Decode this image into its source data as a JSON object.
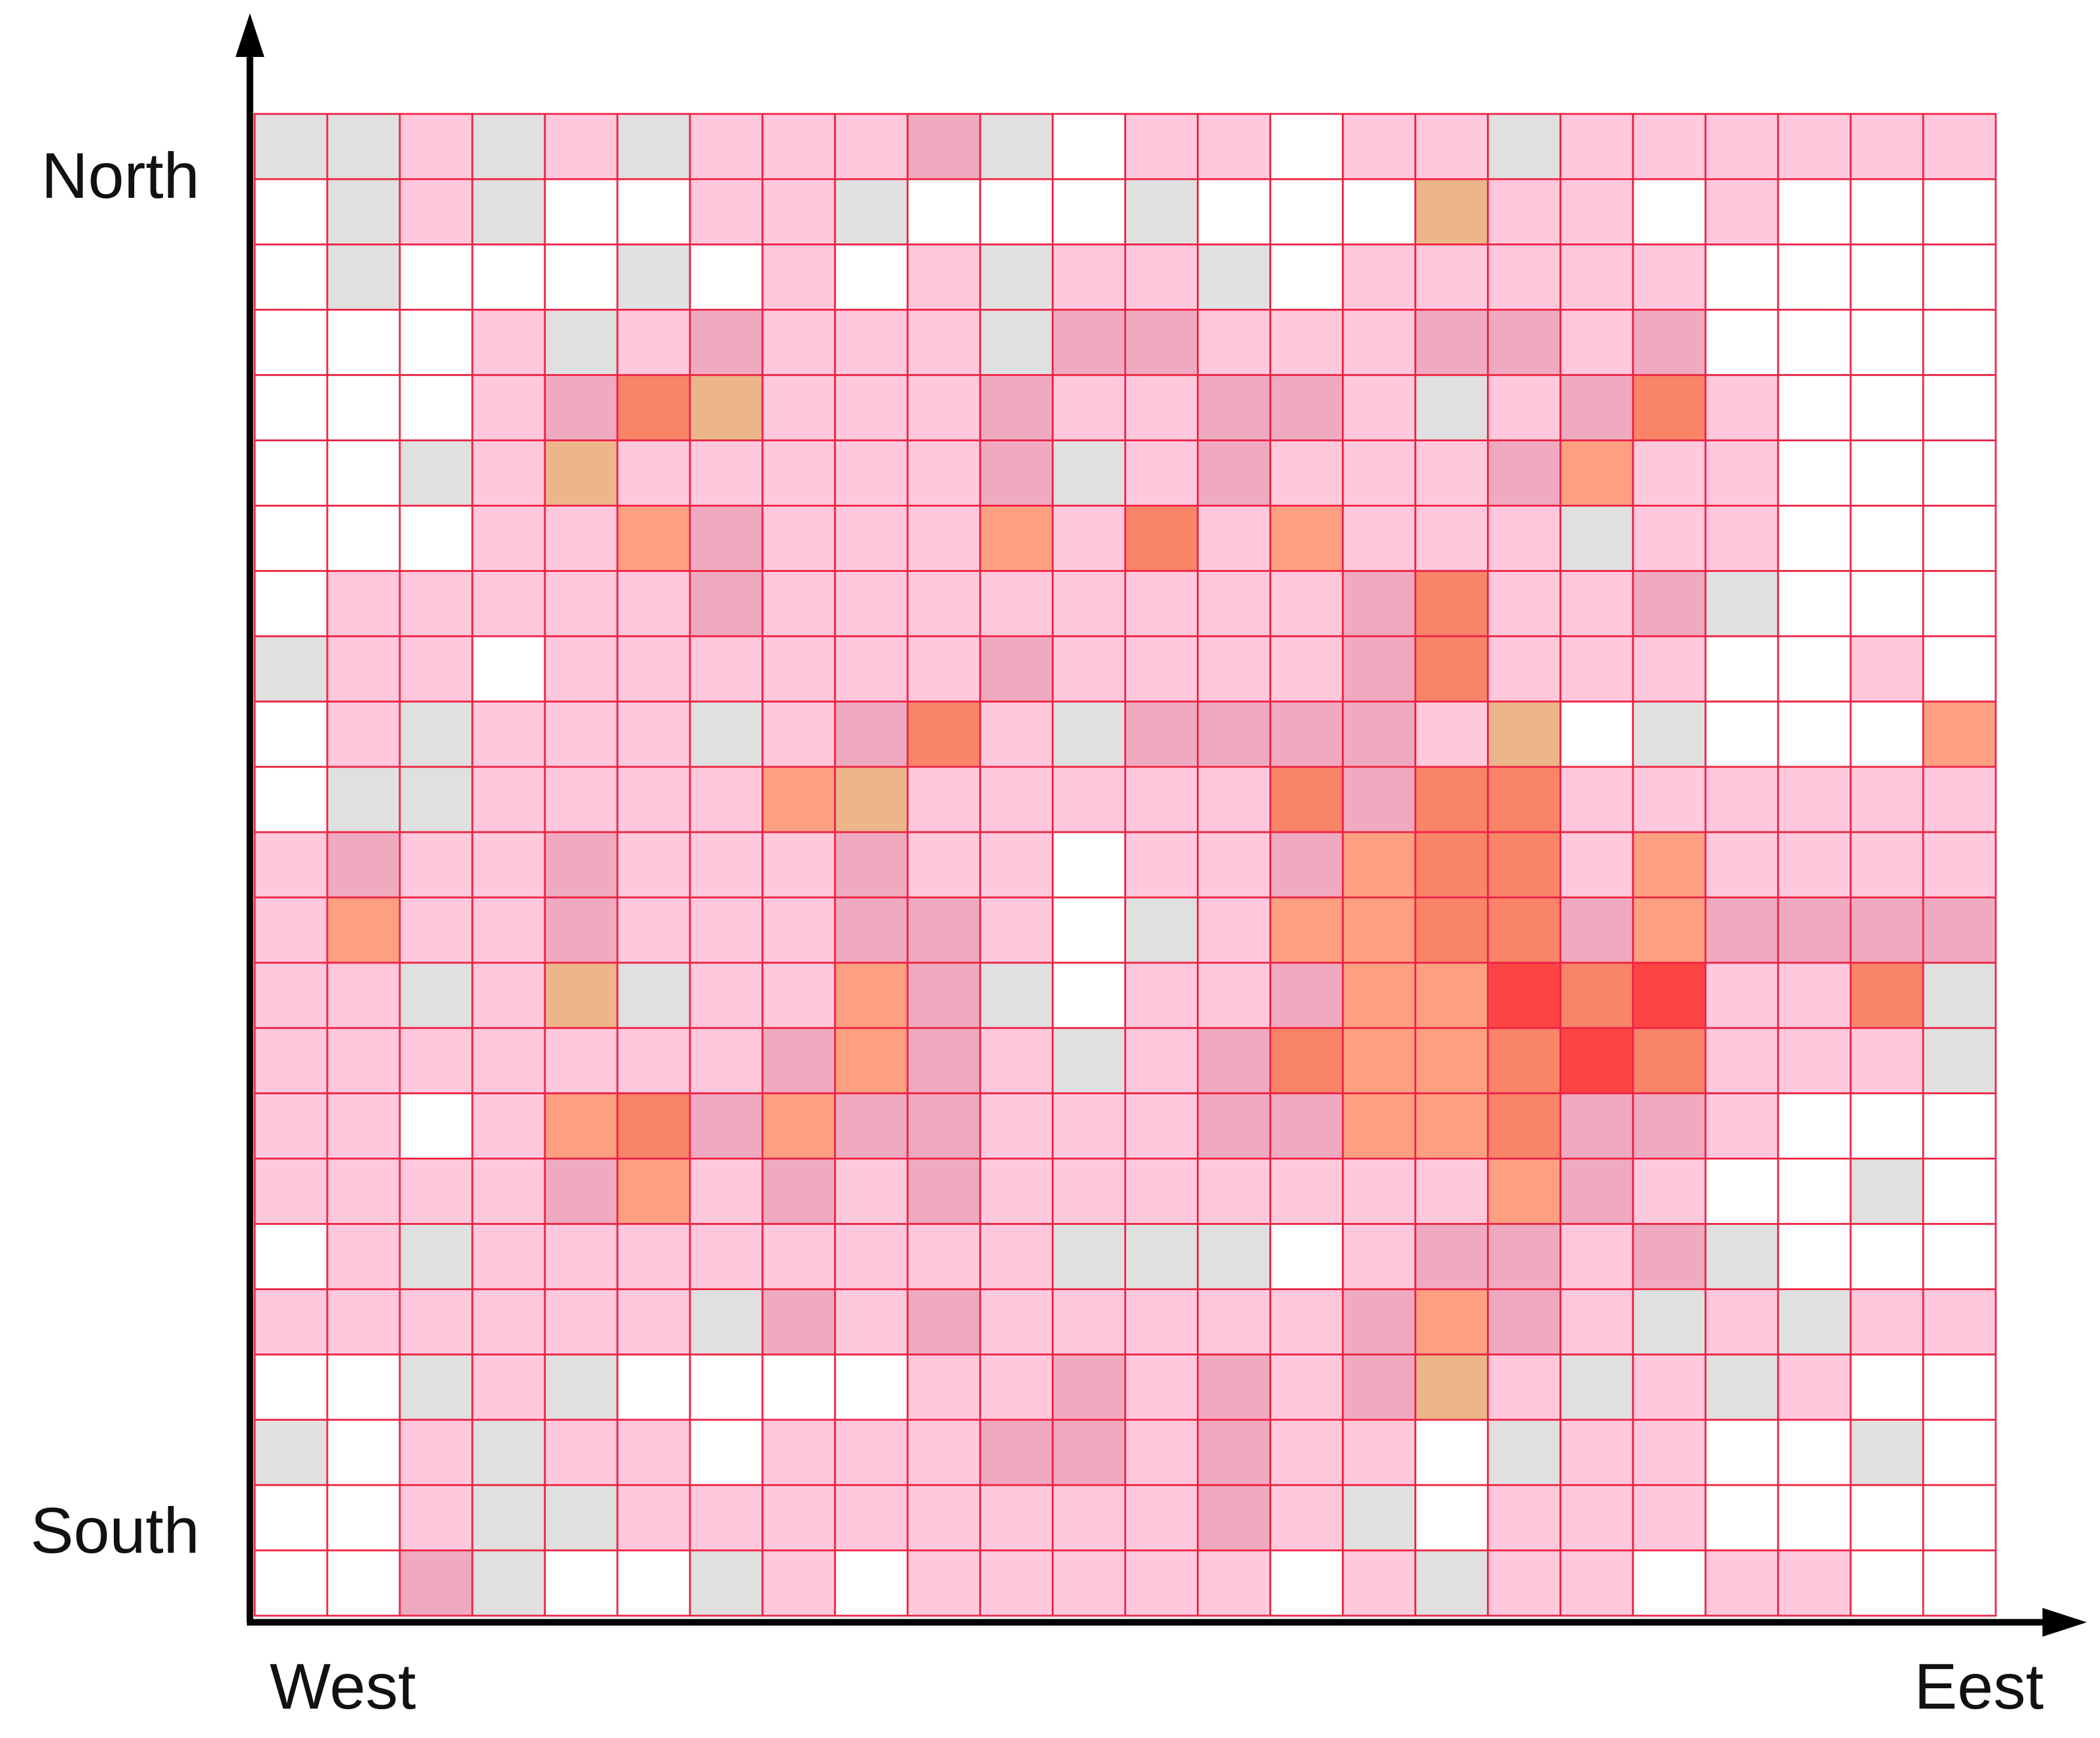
{
  "chart_data": {
    "type": "heatmap",
    "title": "",
    "xlabel": "",
    "ylabel": "",
    "labels": {
      "north": "North",
      "south": "South",
      "west": "West",
      "east": "Eest"
    },
    "rows": 23,
    "cols": 24,
    "grid": true,
    "color_scale": [
      "#ffffff",
      "#e0e0e0",
      "#ffc8dc",
      "#f0aac0",
      "#ecb68a",
      "#fca081",
      "#f98468",
      "#fc4444"
    ],
    "grid_color": "#ee2244",
    "values": [
      [
        1,
        1,
        2,
        1,
        2,
        1,
        2,
        2,
        2,
        3,
        1,
        0,
        2,
        2,
        0,
        2,
        2,
        1,
        2,
        2,
        2,
        2,
        2,
        2
      ],
      [
        0,
        1,
        2,
        1,
        0,
        0,
        2,
        2,
        1,
        0,
        0,
        0,
        1,
        0,
        0,
        0,
        4,
        2,
        2,
        0,
        2,
        0,
        0,
        0
      ],
      [
        0,
        1,
        0,
        0,
        0,
        1,
        0,
        2,
        0,
        2,
        1,
        2,
        2,
        1,
        0,
        2,
        2,
        2,
        2,
        2,
        0,
        0,
        0,
        0
      ],
      [
        0,
        0,
        0,
        2,
        1,
        2,
        3,
        2,
        2,
        2,
        1,
        3,
        3,
        2,
        2,
        2,
        3,
        3,
        2,
        3,
        0,
        0,
        0,
        0
      ],
      [
        0,
        0,
        0,
        2,
        3,
        6,
        4,
        2,
        2,
        2,
        3,
        2,
        2,
        3,
        3,
        2,
        1,
        2,
        3,
        6,
        2,
        0,
        0,
        0
      ],
      [
        0,
        0,
        1,
        2,
        4,
        2,
        2,
        2,
        2,
        2,
        3,
        1,
        2,
        3,
        2,
        2,
        2,
        3,
        5,
        2,
        2,
        0,
        0,
        0
      ],
      [
        0,
        0,
        0,
        2,
        2,
        5,
        3,
        2,
        2,
        2,
        5,
        2,
        6,
        2,
        5,
        2,
        2,
        2,
        1,
        2,
        2,
        0,
        0,
        0
      ],
      [
        0,
        2,
        2,
        2,
        2,
        2,
        3,
        2,
        2,
        2,
        2,
        2,
        2,
        2,
        2,
        3,
        6,
        2,
        2,
        3,
        1,
        0,
        0,
        0
      ],
      [
        1,
        2,
        2,
        0,
        2,
        2,
        2,
        2,
        2,
        2,
        3,
        2,
        2,
        2,
        2,
        3,
        6,
        2,
        2,
        2,
        0,
        0,
        2,
        0
      ],
      [
        0,
        2,
        1,
        2,
        2,
        2,
        1,
        2,
        3,
        6,
        2,
        1,
        3,
        3,
        3,
        3,
        2,
        4,
        0,
        1,
        0,
        0,
        0,
        5
      ],
      [
        0,
        1,
        1,
        2,
        2,
        2,
        2,
        5,
        4,
        2,
        2,
        2,
        2,
        2,
        6,
        3,
        6,
        6,
        2,
        2,
        2,
        2,
        2,
        2
      ],
      [
        2,
        3,
        2,
        2,
        3,
        2,
        2,
        2,
        3,
        2,
        2,
        0,
        2,
        2,
        3,
        5,
        6,
        6,
        2,
        5,
        2,
        2,
        2,
        2
      ],
      [
        2,
        5,
        2,
        2,
        3,
        2,
        2,
        2,
        3,
        3,
        2,
        0,
        1,
        2,
        5,
        5,
        6,
        6,
        3,
        5,
        3,
        3,
        3,
        3
      ],
      [
        2,
        2,
        1,
        2,
        4,
        1,
        2,
        2,
        5,
        3,
        1,
        0,
        2,
        2,
        3,
        5,
        5,
        7,
        6,
        7,
        2,
        2,
        6,
        1
      ],
      [
        2,
        2,
        2,
        2,
        2,
        2,
        2,
        3,
        5,
        3,
        2,
        1,
        2,
        3,
        6,
        5,
        5,
        6,
        7,
        6,
        2,
        2,
        2,
        1
      ],
      [
        2,
        2,
        0,
        2,
        5,
        6,
        3,
        5,
        3,
        3,
        2,
        2,
        2,
        3,
        3,
        5,
        5,
        6,
        3,
        3,
        2,
        0,
        0,
        0
      ],
      [
        2,
        2,
        2,
        2,
        3,
        5,
        2,
        3,
        2,
        3,
        2,
        2,
        2,
        2,
        2,
        2,
        2,
        5,
        3,
        2,
        0,
        0,
        1,
        0
      ],
      [
        0,
        2,
        1,
        2,
        2,
        2,
        2,
        2,
        2,
        2,
        2,
        1,
        1,
        1,
        0,
        2,
        3,
        3,
        2,
        3,
        1,
        0,
        0,
        0
      ],
      [
        2,
        2,
        2,
        2,
        2,
        2,
        1,
        3,
        2,
        3,
        2,
        2,
        2,
        2,
        2,
        3,
        5,
        3,
        2,
        1,
        2,
        1,
        2,
        2
      ],
      [
        0,
        0,
        1,
        2,
        1,
        0,
        0,
        0,
        0,
        2,
        2,
        3,
        2,
        3,
        2,
        3,
        4,
        2,
        1,
        2,
        1,
        2,
        0,
        0
      ],
      [
        1,
        0,
        2,
        1,
        2,
        2,
        0,
        2,
        2,
        2,
        3,
        3,
        2,
        3,
        2,
        2,
        0,
        1,
        2,
        2,
        0,
        0,
        1,
        0
      ],
      [
        0,
        0,
        2,
        1,
        1,
        2,
        2,
        2,
        2,
        2,
        2,
        2,
        2,
        3,
        2,
        1,
        0,
        2,
        2,
        2,
        0,
        0,
        0,
        0
      ],
      [
        0,
        0,
        3,
        1,
        0,
        0,
        1,
        2,
        0,
        2,
        2,
        2,
        2,
        2,
        0,
        2,
        1,
        2,
        2,
        0,
        2,
        2,
        0,
        0
      ]
    ]
  }
}
